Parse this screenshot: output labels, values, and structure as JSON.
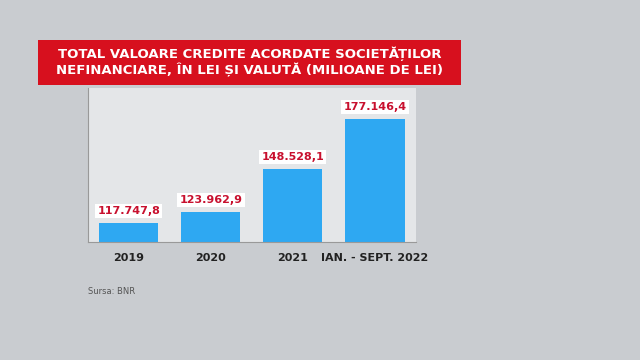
{
  "chart_data": {
    "type": "bar",
    "title": "TOTAL VALOARE CREDITE ACORDATE SOCIETĂȚILOR NEFINANCIARE, ÎN LEI ȘI VALUTĂ (MILIOANE DE LEI)",
    "categories": [
      "2019",
      "2020",
      "2021",
      "IAN. - SEPT. 2022"
    ],
    "values": [
      117747.8,
      123962.9,
      148528.1,
      177146.4
    ],
    "value_labels": [
      "117.747,8",
      "123.962,9",
      "148.528,1",
      "177.146,4"
    ],
    "data_labels": true,
    "color": "#2ea8f2",
    "ylim": [
      107000,
      195000
    ],
    "yticks": [],
    "tick_labels": "x",
    "grid": false,
    "source": "Sursa: BNR"
  }
}
